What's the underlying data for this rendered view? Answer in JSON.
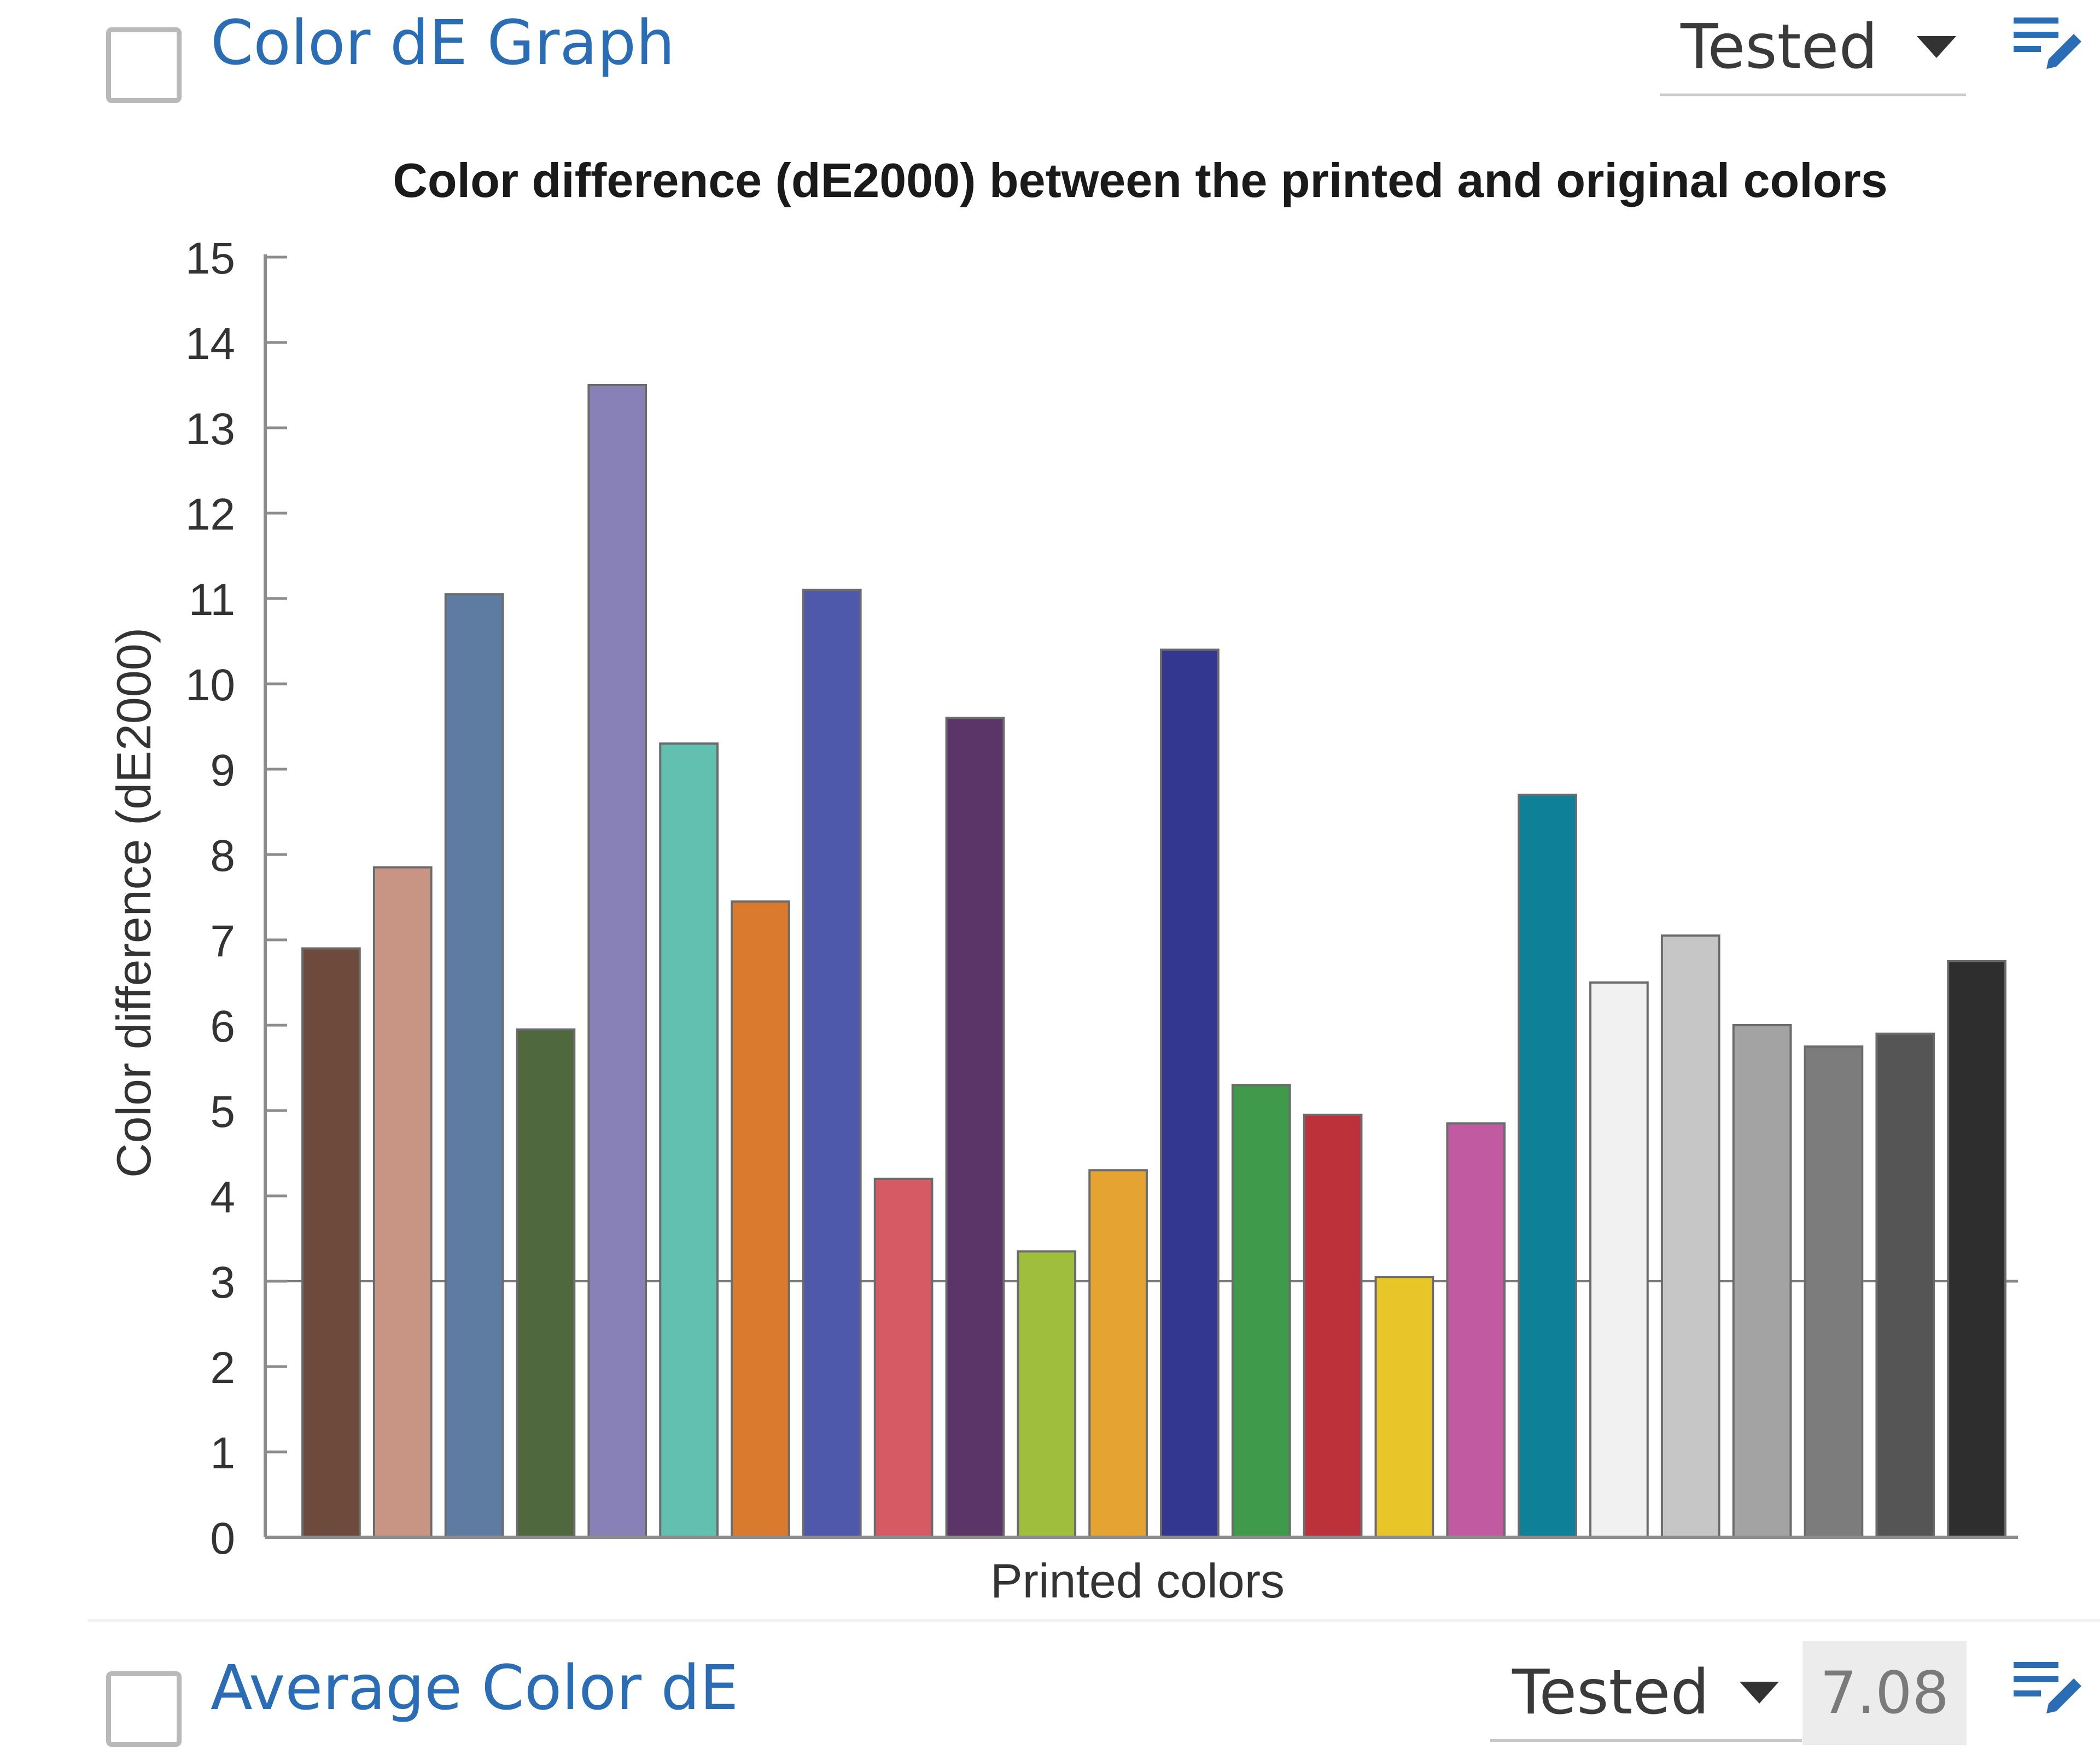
{
  "rows": [
    {
      "title": "Color dE Graph",
      "status": "Tested"
    },
    {
      "title": "Average Color dE",
      "status": "Tested",
      "value": "7.08"
    }
  ],
  "icons": {
    "checkbox": "checkbox-icon",
    "dropdown": "caret-down-icon",
    "edit": "edit-list-icon"
  },
  "colors": {
    "link": "#2a6db5",
    "icon": "#2a6db5"
  },
  "chart_data": {
    "type": "bar",
    "title": "Color difference (dE2000) between the printed and original colors",
    "xlabel": "Printed colors",
    "ylabel": "Color difference (dE2000)",
    "ylim": [
      0,
      15
    ],
    "yticks": [
      "0",
      "1",
      "2",
      "3",
      "4",
      "5",
      "6",
      "7",
      "8",
      "9",
      "10",
      "11",
      "12",
      "13",
      "14",
      "15"
    ],
    "grid": false,
    "values": [
      6.9,
      7.85,
      11.05,
      5.95,
      13.5,
      9.3,
      7.45,
      11.1,
      4.2,
      9.6,
      3.35,
      4.3,
      10.4,
      5.3,
      4.95,
      3.05,
      4.85,
      8.7,
      6.5,
      7.05,
      6.0,
      5.75,
      5.9,
      6.75
    ],
    "colors": [
      "#6e4a3d",
      "#c89584",
      "#5e7ba2",
      "#50683e",
      "#8781b8",
      "#62c0b0",
      "#da7a2f",
      "#4f59ac",
      "#d65a63",
      "#5b3468",
      "#9fbe3e",
      "#e5a432",
      "#33378f",
      "#3f9a4b",
      "#bd313b",
      "#e8c62a",
      "#c25aa2",
      "#0e8098",
      "#f1f1f1",
      "#c6c6c6",
      "#a3a3a3",
      "#7c7c7c",
      "#555555",
      "#2e2e2e"
    ]
  }
}
